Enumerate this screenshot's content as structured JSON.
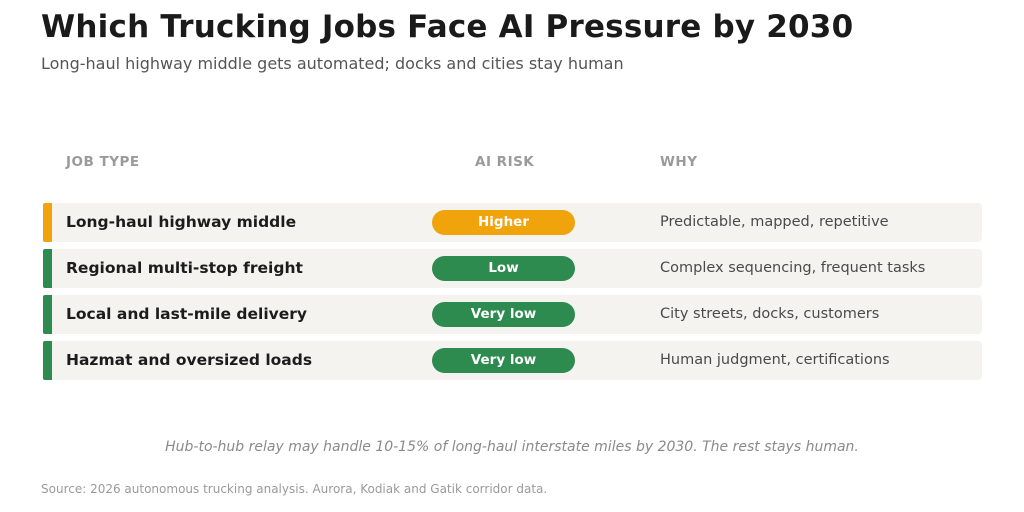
{
  "title": "Which Trucking Jobs Face AI Pressure by 2030",
  "subtitle": "Long-haul highway middle gets automated; docks and cities stay human",
  "columns": {
    "job": "JOB TYPE",
    "risk": "AI RISK",
    "why": "WHY"
  },
  "colors": {
    "higher": "#f0a30a",
    "low": "#2e8b50",
    "row_bg": "#f5f3ef"
  },
  "chart_data": {
    "type": "table",
    "title": "Which Trucking Jobs Face AI Pressure by 2030",
    "subtitle": "Long-haul highway middle gets automated; docks and cities stay human",
    "columns": [
      "JOB TYPE",
      "AI RISK",
      "WHY"
    ],
    "rows": [
      {
        "job": "Long-haul highway middle",
        "risk": "Higher",
        "why": "Predictable, mapped, repetitive",
        "color": "#f0a30a"
      },
      {
        "job": "Regional multi-stop freight",
        "risk": "Low",
        "why": "Complex sequencing, frequent tasks",
        "color": "#2e8b50"
      },
      {
        "job": "Local and last-mile delivery",
        "risk": "Very low",
        "why": "City streets, docks, customers",
        "color": "#2e8b50"
      },
      {
        "job": "Hazmat and oversized loads",
        "risk": "Very low",
        "why": "Human judgment, certifications",
        "color": "#2e8b50"
      }
    ]
  },
  "note": "Hub-to-hub relay may handle 10-15% of long-haul interstate miles by 2030. The rest stays human.",
  "source": "Source: 2026 autonomous trucking analysis. Aurora, Kodiak and Gatik corridor data."
}
